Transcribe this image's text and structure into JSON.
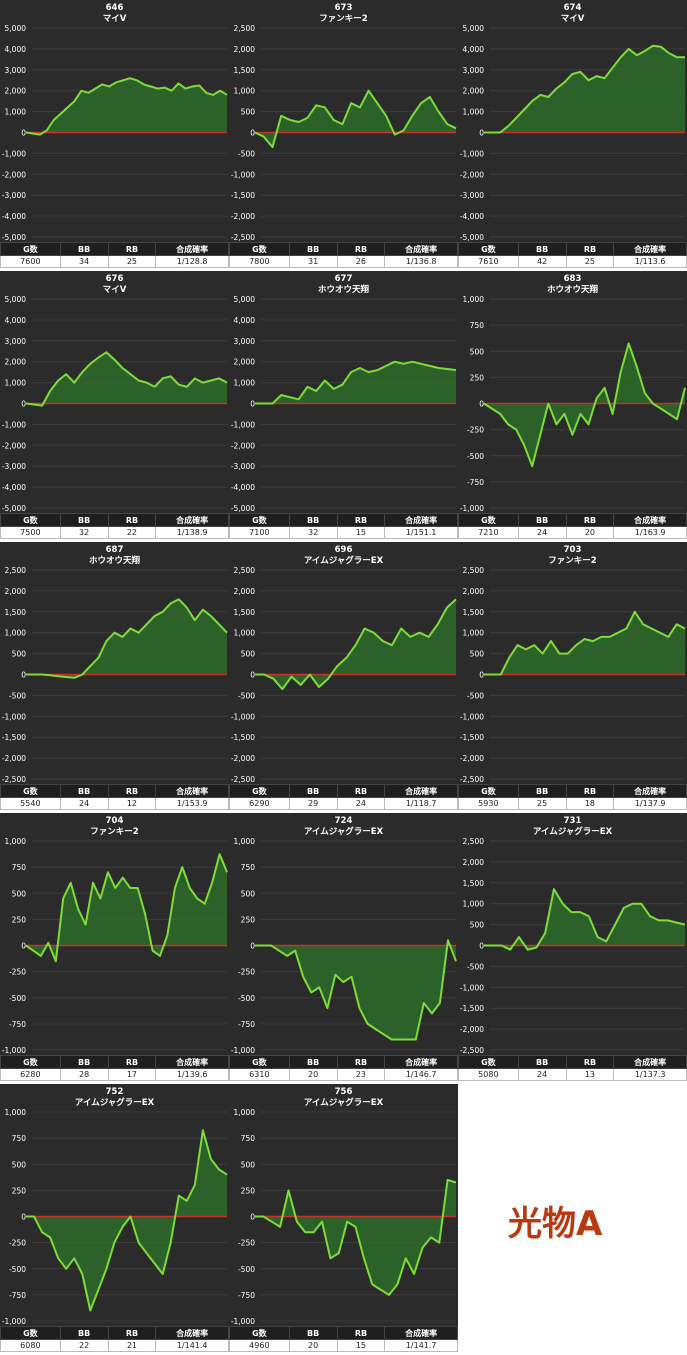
{
  "colors": {
    "line": "#7ddc3a",
    "fill": "#2e6b2a",
    "zero_line": "#c8322b",
    "bg": "#2b2b2b",
    "grid": "#3d3d3d"
  },
  "stat_headers": [
    "G数",
    "BB",
    "RB",
    "合成確率"
  ],
  "label": "光物A",
  "chart_data": [
    {
      "type": "area",
      "title": "646",
      "subtitle": "マイV",
      "ylim": [
        -5000,
        5000
      ],
      "yticks": [
        5000,
        4000,
        3000,
        2000,
        1000,
        0,
        -1000,
        -2000,
        -3000,
        -4000,
        -5000
      ],
      "values": [
        0,
        -50,
        -100,
        100,
        600,
        900,
        1200,
        1500,
        2000,
        1900,
        2100,
        2300,
        2200,
        2400,
        2500,
        2600,
        2500,
        2300,
        2200,
        2100,
        2150,
        2000,
        2350,
        2100,
        2200,
        2250,
        1900,
        1800,
        2000,
        1800
      ],
      "stats": {
        "g": "7600",
        "bb": "34",
        "rb": "25",
        "rate": "1/128.8"
      }
    },
    {
      "type": "area",
      "title": "673",
      "subtitle": "ファンキー2",
      "ylim": [
        -2500,
        2500
      ],
      "yticks": [
        2500,
        2000,
        1500,
        1000,
        500,
        0,
        -500,
        -1000,
        -1500,
        -2000,
        -2500
      ],
      "values": [
        0,
        -100,
        -350,
        400,
        300,
        250,
        350,
        650,
        600,
        300,
        200,
        700,
        600,
        1000,
        700,
        400,
        -50,
        50,
        400,
        700,
        850,
        500,
        200,
        100
      ],
      "stats": {
        "g": "7800",
        "bb": "31",
        "rb": "26",
        "rate": "1/136.8"
      }
    },
    {
      "type": "area",
      "title": "674",
      "subtitle": "マイV",
      "ylim": [
        -5000,
        5000
      ],
      "yticks": [
        5000,
        4000,
        3000,
        2000,
        1000,
        0,
        -1000,
        -2000,
        -3000,
        -4000,
        -5000
      ],
      "values": [
        0,
        0,
        0,
        300,
        700,
        1100,
        1500,
        1800,
        1700,
        2100,
        2400,
        2800,
        2900,
        2500,
        2700,
        2600,
        3100,
        3600,
        4000,
        3700,
        3900,
        4150,
        4100,
        3800,
        3600,
        3600
      ],
      "stats": {
        "g": "7610",
        "bb": "42",
        "rb": "25",
        "rate": "1/113.6"
      }
    },
    {
      "type": "area",
      "title": "676",
      "subtitle": "マイV",
      "ylim": [
        -5000,
        5000
      ],
      "yticks": [
        5000,
        4000,
        3000,
        2000,
        1000,
        0,
        -1000,
        -2000,
        -3000,
        -4000,
        -5000
      ],
      "values": [
        0,
        -50,
        -100,
        600,
        1100,
        1400,
        1000,
        1500,
        1900,
        2200,
        2450,
        2100,
        1700,
        1400,
        1100,
        1000,
        800,
        1200,
        1300,
        900,
        800,
        1200,
        1000,
        1100,
        1200,
        1000
      ],
      "stats": {
        "g": "7500",
        "bb": "32",
        "rb": "22",
        "rate": "1/138.9"
      }
    },
    {
      "type": "area",
      "title": "677",
      "subtitle": "ホウオウ天翔",
      "ylim": [
        -5000,
        5000
      ],
      "yticks": [
        5000,
        4000,
        3000,
        2000,
        1000,
        0,
        -1000,
        -2000,
        -3000,
        -4000,
        -5000
      ],
      "values": [
        0,
        0,
        0,
        400,
        300,
        200,
        800,
        600,
        1100,
        700,
        900,
        1500,
        1700,
        1500,
        1600,
        1800,
        2000,
        1900,
        2000,
        1900,
        1800,
        1700,
        1650,
        1600
      ],
      "stats": {
        "g": "7100",
        "bb": "32",
        "rb": "15",
        "rate": "1/151.1"
      }
    },
    {
      "type": "area",
      "title": "683",
      "subtitle": "ホウオウ天翔",
      "ylim": [
        -1000,
        1000
      ],
      "yticks": [
        1000,
        750,
        500,
        250,
        0,
        -250,
        -500,
        -750,
        -1000
      ],
      "values": [
        0,
        -50,
        -100,
        -200,
        -250,
        -400,
        -600,
        -300,
        0,
        -200,
        -100,
        -300,
        -100,
        -200,
        50,
        150,
        -100,
        300,
        575,
        350,
        100,
        0,
        -50,
        -100,
        -150,
        150
      ],
      "stats": {
        "g": "7210",
        "bb": "24",
        "rb": "20",
        "rate": "1/163.9"
      }
    },
    {
      "type": "area",
      "title": "687",
      "subtitle": "ホウオウ天翔",
      "ylim": [
        -2500,
        2500
      ],
      "yticks": [
        2500,
        2000,
        1500,
        1000,
        500,
        0,
        -500,
        -1000,
        -1500,
        -2000,
        -2500
      ],
      "values": [
        0,
        0,
        0,
        -20,
        -40,
        -60,
        -80,
        0,
        200,
        400,
        800,
        1000,
        900,
        1100,
        1000,
        1200,
        1400,
        1500,
        1700,
        1800,
        1600,
        1300,
        1550,
        1400,
        1200,
        1000
      ],
      "stats": {
        "g": "5540",
        "bb": "24",
        "rb": "12",
        "rate": "1/153.9"
      }
    },
    {
      "type": "area",
      "title": "696",
      "subtitle": "アイムジャグラーEX",
      "ylim": [
        -2500,
        2500
      ],
      "yticks": [
        2500,
        2000,
        1500,
        1000,
        500,
        0,
        -500,
        -1000,
        -1500,
        -2000,
        -2500
      ],
      "values": [
        0,
        0,
        -100,
        -350,
        -50,
        -250,
        0,
        -300,
        -100,
        200,
        400,
        700,
        1100,
        1000,
        800,
        700,
        1100,
        900,
        1000,
        900,
        1200,
        1600,
        1800
      ],
      "stats": {
        "g": "6290",
        "bb": "29",
        "rb": "24",
        "rate": "1/118.7"
      }
    },
    {
      "type": "area",
      "title": "703",
      "subtitle": "ファンキー2",
      "ylim": [
        -2500,
        2500
      ],
      "yticks": [
        2500,
        2000,
        1500,
        1000,
        500,
        0,
        -500,
        -1000,
        -1500,
        -2000,
        -2500
      ],
      "values": [
        0,
        0,
        0,
        400,
        700,
        600,
        700,
        500,
        800,
        500,
        500,
        700,
        850,
        800,
        900,
        900,
        1000,
        1100,
        1500,
        1200,
        1100,
        1000,
        900,
        1200,
        1100
      ],
      "stats": {
        "g": "5930",
        "bb": "25",
        "rb": "18",
        "rate": "1/137.9"
      }
    },
    {
      "type": "area",
      "title": "704",
      "subtitle": "ファンキー2",
      "ylim": [
        -1000,
        1000
      ],
      "yticks": [
        1000,
        750,
        500,
        250,
        0,
        -250,
        -500,
        -750,
        -1000
      ],
      "values": [
        0,
        -50,
        -100,
        25,
        -150,
        450,
        600,
        350,
        200,
        600,
        450,
        700,
        550,
        650,
        550,
        550,
        300,
        -50,
        -100,
        100,
        550,
        750,
        550,
        450,
        400,
        600,
        875,
        700
      ],
      "stats": {
        "g": "6280",
        "bb": "28",
        "rb": "17",
        "rate": "1/139.6"
      }
    },
    {
      "type": "area",
      "title": "724",
      "subtitle": "アイムジャグラーEX",
      "ylim": [
        -1000,
        1000
      ],
      "yticks": [
        1000,
        750,
        500,
        250,
        0,
        -250,
        -500,
        -750,
        -1000
      ],
      "values": [
        0,
        0,
        0,
        -50,
        -100,
        -50,
        -300,
        -450,
        -400,
        -600,
        -280,
        -350,
        -300,
        -600,
        -750,
        -800,
        -850,
        -900,
        -900,
        -900,
        -900,
        -550,
        -650,
        -550,
        50,
        -150
      ],
      "stats": {
        "g": "6310",
        "bb": "20",
        "rb": "23",
        "rate": "1/146.7"
      }
    },
    {
      "type": "area",
      "title": "731",
      "subtitle": "アイムジャグラーEX",
      "ylim": [
        -2500,
        2500
      ],
      "yticks": [
        2500,
        2000,
        1500,
        1000,
        500,
        0,
        -500,
        -1000,
        -1500,
        -2000,
        -2500
      ],
      "values": [
        0,
        0,
        0,
        -100,
        200,
        -100,
        -50,
        300,
        1350,
        1000,
        800,
        800,
        700,
        200,
        100,
        500,
        900,
        1000,
        1000,
        700,
        600,
        600,
        550,
        500
      ],
      "stats": {
        "g": "5080",
        "bb": "24",
        "rb": "13",
        "rate": "1/137.3"
      }
    },
    {
      "type": "area",
      "title": "752",
      "subtitle": "アイムジャグラーEX",
      "ylim": [
        -1000,
        1000
      ],
      "yticks": [
        1000,
        750,
        500,
        250,
        0,
        -250,
        -500,
        -750,
        -1000
      ],
      "values": [
        0,
        0,
        -150,
        -200,
        -400,
        -500,
        -400,
        -550,
        -900,
        -700,
        -500,
        -250,
        -100,
        0,
        -250,
        -350,
        -450,
        -550,
        -250,
        200,
        150,
        300,
        825,
        550,
        450,
        400
      ],
      "stats": {
        "g": "6080",
        "bb": "22",
        "rb": "21",
        "rate": "1/141.4"
      }
    },
    {
      "type": "area",
      "title": "756",
      "subtitle": "アイムジャグラーEX",
      "ylim": [
        -1000,
        1000
      ],
      "yticks": [
        1000,
        750,
        500,
        250,
        0,
        -250,
        -500,
        -750,
        -1000
      ],
      "values": [
        0,
        0,
        -50,
        -100,
        250,
        -50,
        -150,
        -150,
        -50,
        -400,
        -350,
        -50,
        -100,
        -400,
        -650,
        -700,
        -750,
        -650,
        -400,
        -550,
        -300,
        -200,
        -250,
        350,
        325
      ],
      "stats": {
        "g": "4960",
        "bb": "20",
        "rb": "15",
        "rate": "1/141.7"
      }
    }
  ]
}
